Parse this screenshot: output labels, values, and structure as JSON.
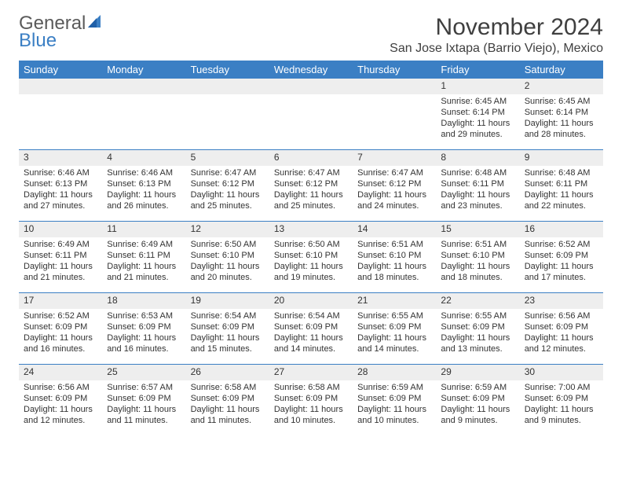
{
  "logo": {
    "line1": "General",
    "line2": "Blue"
  },
  "title": "November 2024",
  "location": "San Jose Ixtapa (Barrio Viejo), Mexico",
  "colors": {
    "header_bg": "#3b7fc4",
    "header_text": "#ffffff",
    "day_band": "#eeeeee",
    "rule": "#3b7fc4",
    "text": "#333333",
    "logo_gray": "#5a5a5a",
    "logo_blue": "#3b7fc4"
  },
  "day_headers": [
    "Sunday",
    "Monday",
    "Tuesday",
    "Wednesday",
    "Thursday",
    "Friday",
    "Saturday"
  ],
  "weeks": [
    [
      {
        "n": "",
        "lines": []
      },
      {
        "n": "",
        "lines": []
      },
      {
        "n": "",
        "lines": []
      },
      {
        "n": "",
        "lines": []
      },
      {
        "n": "",
        "lines": []
      },
      {
        "n": "1",
        "lines": [
          "Sunrise: 6:45 AM",
          "Sunset: 6:14 PM",
          "Daylight: 11 hours and 29 minutes."
        ]
      },
      {
        "n": "2",
        "lines": [
          "Sunrise: 6:45 AM",
          "Sunset: 6:14 PM",
          "Daylight: 11 hours and 28 minutes."
        ]
      }
    ],
    [
      {
        "n": "3",
        "lines": [
          "Sunrise: 6:46 AM",
          "Sunset: 6:13 PM",
          "Daylight: 11 hours and 27 minutes."
        ]
      },
      {
        "n": "4",
        "lines": [
          "Sunrise: 6:46 AM",
          "Sunset: 6:13 PM",
          "Daylight: 11 hours and 26 minutes."
        ]
      },
      {
        "n": "5",
        "lines": [
          "Sunrise: 6:47 AM",
          "Sunset: 6:12 PM",
          "Daylight: 11 hours and 25 minutes."
        ]
      },
      {
        "n": "6",
        "lines": [
          "Sunrise: 6:47 AM",
          "Sunset: 6:12 PM",
          "Daylight: 11 hours and 25 minutes."
        ]
      },
      {
        "n": "7",
        "lines": [
          "Sunrise: 6:47 AM",
          "Sunset: 6:12 PM",
          "Daylight: 11 hours and 24 minutes."
        ]
      },
      {
        "n": "8",
        "lines": [
          "Sunrise: 6:48 AM",
          "Sunset: 6:11 PM",
          "Daylight: 11 hours and 23 minutes."
        ]
      },
      {
        "n": "9",
        "lines": [
          "Sunrise: 6:48 AM",
          "Sunset: 6:11 PM",
          "Daylight: 11 hours and 22 minutes."
        ]
      }
    ],
    [
      {
        "n": "10",
        "lines": [
          "Sunrise: 6:49 AM",
          "Sunset: 6:11 PM",
          "Daylight: 11 hours and 21 minutes."
        ]
      },
      {
        "n": "11",
        "lines": [
          "Sunrise: 6:49 AM",
          "Sunset: 6:11 PM",
          "Daylight: 11 hours and 21 minutes."
        ]
      },
      {
        "n": "12",
        "lines": [
          "Sunrise: 6:50 AM",
          "Sunset: 6:10 PM",
          "Daylight: 11 hours and 20 minutes."
        ]
      },
      {
        "n": "13",
        "lines": [
          "Sunrise: 6:50 AM",
          "Sunset: 6:10 PM",
          "Daylight: 11 hours and 19 minutes."
        ]
      },
      {
        "n": "14",
        "lines": [
          "Sunrise: 6:51 AM",
          "Sunset: 6:10 PM",
          "Daylight: 11 hours and 18 minutes."
        ]
      },
      {
        "n": "15",
        "lines": [
          "Sunrise: 6:51 AM",
          "Sunset: 6:10 PM",
          "Daylight: 11 hours and 18 minutes."
        ]
      },
      {
        "n": "16",
        "lines": [
          "Sunrise: 6:52 AM",
          "Sunset: 6:09 PM",
          "Daylight: 11 hours and 17 minutes."
        ]
      }
    ],
    [
      {
        "n": "17",
        "lines": [
          "Sunrise: 6:52 AM",
          "Sunset: 6:09 PM",
          "Daylight: 11 hours and 16 minutes."
        ]
      },
      {
        "n": "18",
        "lines": [
          "Sunrise: 6:53 AM",
          "Sunset: 6:09 PM",
          "Daylight: 11 hours and 16 minutes."
        ]
      },
      {
        "n": "19",
        "lines": [
          "Sunrise: 6:54 AM",
          "Sunset: 6:09 PM",
          "Daylight: 11 hours and 15 minutes."
        ]
      },
      {
        "n": "20",
        "lines": [
          "Sunrise: 6:54 AM",
          "Sunset: 6:09 PM",
          "Daylight: 11 hours and 14 minutes."
        ]
      },
      {
        "n": "21",
        "lines": [
          "Sunrise: 6:55 AM",
          "Sunset: 6:09 PM",
          "Daylight: 11 hours and 14 minutes."
        ]
      },
      {
        "n": "22",
        "lines": [
          "Sunrise: 6:55 AM",
          "Sunset: 6:09 PM",
          "Daylight: 11 hours and 13 minutes."
        ]
      },
      {
        "n": "23",
        "lines": [
          "Sunrise: 6:56 AM",
          "Sunset: 6:09 PM",
          "Daylight: 11 hours and 12 minutes."
        ]
      }
    ],
    [
      {
        "n": "24",
        "lines": [
          "Sunrise: 6:56 AM",
          "Sunset: 6:09 PM",
          "Daylight: 11 hours and 12 minutes."
        ]
      },
      {
        "n": "25",
        "lines": [
          "Sunrise: 6:57 AM",
          "Sunset: 6:09 PM",
          "Daylight: 11 hours and 11 minutes."
        ]
      },
      {
        "n": "26",
        "lines": [
          "Sunrise: 6:58 AM",
          "Sunset: 6:09 PM",
          "Daylight: 11 hours and 11 minutes."
        ]
      },
      {
        "n": "27",
        "lines": [
          "Sunrise: 6:58 AM",
          "Sunset: 6:09 PM",
          "Daylight: 11 hours and 10 minutes."
        ]
      },
      {
        "n": "28",
        "lines": [
          "Sunrise: 6:59 AM",
          "Sunset: 6:09 PM",
          "Daylight: 11 hours and 10 minutes."
        ]
      },
      {
        "n": "29",
        "lines": [
          "Sunrise: 6:59 AM",
          "Sunset: 6:09 PM",
          "Daylight: 11 hours and 9 minutes."
        ]
      },
      {
        "n": "30",
        "lines": [
          "Sunrise: 7:00 AM",
          "Sunset: 6:09 PM",
          "Daylight: 11 hours and 9 minutes."
        ]
      }
    ]
  ]
}
